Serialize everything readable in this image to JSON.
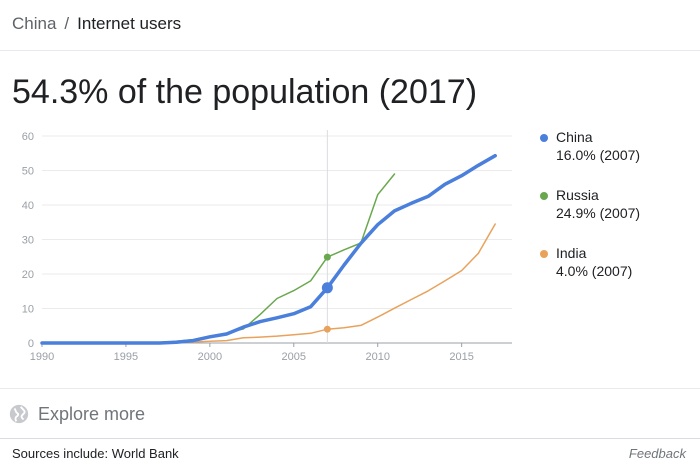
{
  "breadcrumb": {
    "country": "China",
    "separator": "/",
    "metric": "Internet users"
  },
  "headline": "54.3% of the population (2017)",
  "chart_data": {
    "type": "line",
    "x_ticks": [
      1990,
      1995,
      2000,
      2005,
      2010,
      2015
    ],
    "y_ticks": [
      0,
      10,
      20,
      30,
      40,
      50,
      60
    ],
    "xlim": [
      1990,
      2018
    ],
    "ylim": [
      0,
      60
    ],
    "grid": "horizontal",
    "legend_position": "right",
    "highlight_x": 2007,
    "series": [
      {
        "name": "China",
        "color": "#4a7fdc",
        "legend_value": "16.0% (2007)",
        "x": [
          1990,
          1993,
          1996,
          1997,
          1998,
          1999,
          2000,
          2001,
          2002,
          2003,
          2004,
          2005,
          2006,
          2007,
          2008,
          2009,
          2010,
          2011,
          2012,
          2013,
          2014,
          2015,
          2016,
          2017
        ],
        "y": [
          0,
          0,
          0,
          0,
          0.2,
          0.7,
          1.8,
          2.6,
          4.6,
          6.2,
          7.3,
          8.5,
          10.5,
          16.0,
          22.6,
          28.9,
          34.3,
          38.3,
          40.5,
          42.5,
          46.0,
          48.5,
          51.5,
          54.3
        ]
      },
      {
        "name": "Russia",
        "color": "#6aa84f",
        "legend_value": "24.9% (2007)",
        "x": [
          1990,
          1993,
          1996,
          1997,
          1998,
          1999,
          2000,
          2001,
          2002,
          2003,
          2004,
          2005,
          2006,
          2007,
          2008,
          2009,
          2010,
          2011
        ],
        "y": [
          0,
          0,
          0,
          0.1,
          0.5,
          1.0,
          2.0,
          2.9,
          4.1,
          8.3,
          12.9,
          15.2,
          18.0,
          24.9,
          27.0,
          29.0,
          43.0,
          49.0
        ]
      },
      {
        "name": "India",
        "color": "#e8a25c",
        "legend_value": "4.0% (2007)",
        "x": [
          1990,
          1995,
          1998,
          1999,
          2000,
          2001,
          2002,
          2003,
          2004,
          2005,
          2006,
          2007,
          2008,
          2009,
          2010,
          2011,
          2012,
          2013,
          2014,
          2015,
          2016,
          2017
        ],
        "y": [
          0,
          0,
          0.1,
          0.3,
          0.5,
          0.7,
          1.5,
          1.7,
          2.0,
          2.4,
          2.8,
          4.0,
          4.4,
          5.1,
          7.5,
          10.1,
          12.6,
          15.1,
          18.0,
          21.0,
          26.0,
          34.5
        ]
      }
    ]
  },
  "explore": {
    "label": "Explore more",
    "icon": "globe-icon"
  },
  "footer": {
    "sources": "Sources include: World Bank",
    "feedback": "Feedback"
  }
}
